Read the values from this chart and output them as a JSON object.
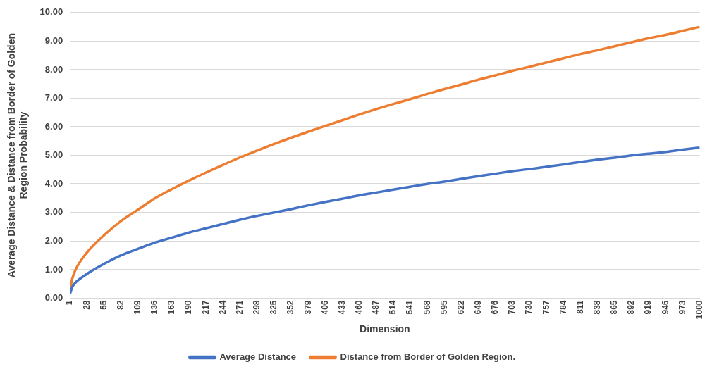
{
  "chart_data": {
    "type": "line",
    "xlabel": "Dimension",
    "ylabel": "Average Distance & Distance from Border of Golden Region Probability",
    "x": [
      1,
      5,
      10,
      28,
      55,
      82,
      109,
      136,
      163,
      190,
      217,
      244,
      271,
      298,
      325,
      352,
      379,
      406,
      433,
      460,
      487,
      514,
      541,
      568,
      595,
      622,
      649,
      676,
      703,
      730,
      757,
      784,
      811,
      838,
      865,
      892,
      919,
      946,
      973,
      1000
    ],
    "series": [
      {
        "name": "Average Distance",
        "color": "#4472c4",
        "values": [
          0.15,
          0.4,
          0.55,
          0.85,
          1.2,
          1.5,
          1.73,
          1.95,
          2.12,
          2.3,
          2.45,
          2.6,
          2.75,
          2.88,
          3.0,
          3.12,
          3.25,
          3.37,
          3.48,
          3.6,
          3.7,
          3.8,
          3.9,
          4.0,
          4.08,
          4.18,
          4.27,
          4.36,
          4.45,
          4.52,
          4.6,
          4.68,
          4.77,
          4.85,
          4.92,
          5.0,
          5.06,
          5.12,
          5.2,
          5.27
        ]
      },
      {
        "name": "Distance from Border of Golden Region.",
        "color": "#ed7d31",
        "values": [
          0.3,
          0.7,
          1.0,
          1.6,
          2.2,
          2.7,
          3.1,
          3.5,
          3.82,
          4.12,
          4.4,
          4.67,
          4.93,
          5.17,
          5.4,
          5.62,
          5.83,
          6.03,
          6.23,
          6.43,
          6.62,
          6.8,
          6.97,
          7.15,
          7.32,
          7.48,
          7.65,
          7.8,
          7.96,
          8.1,
          8.25,
          8.4,
          8.55,
          8.68,
          8.82,
          8.96,
          9.1,
          9.22,
          9.36,
          9.5
        ]
      }
    ],
    "xlim": [
      1,
      1000
    ],
    "xticks": [
      1,
      28,
      55,
      82,
      109,
      136,
      163,
      190,
      217,
      244,
      271,
      298,
      325,
      352,
      379,
      406,
      433,
      460,
      487,
      514,
      541,
      568,
      595,
      622,
      649,
      676,
      703,
      730,
      757,
      784,
      811,
      838,
      865,
      892,
      919,
      946,
      973,
      1000
    ],
    "ylim": [
      0,
      10
    ],
    "yticks": [
      {
        "value": 0,
        "label": "0.00"
      },
      {
        "value": 1,
        "label": "1.00"
      },
      {
        "value": 2,
        "label": "2.00"
      },
      {
        "value": 3,
        "label": "3.00"
      },
      {
        "value": 4,
        "label": "4.00"
      },
      {
        "value": 5,
        "label": "5.00"
      },
      {
        "value": 6,
        "label": "6.00"
      },
      {
        "value": 7,
        "label": "7.00"
      },
      {
        "value": 8,
        "label": "8.00"
      },
      {
        "value": 9,
        "label": "9.00"
      },
      {
        "value": 10,
        "label": "10.00"
      }
    ],
    "grid": "y",
    "legend": "bottom",
    "marker": "none",
    "line_style": "solid"
  }
}
